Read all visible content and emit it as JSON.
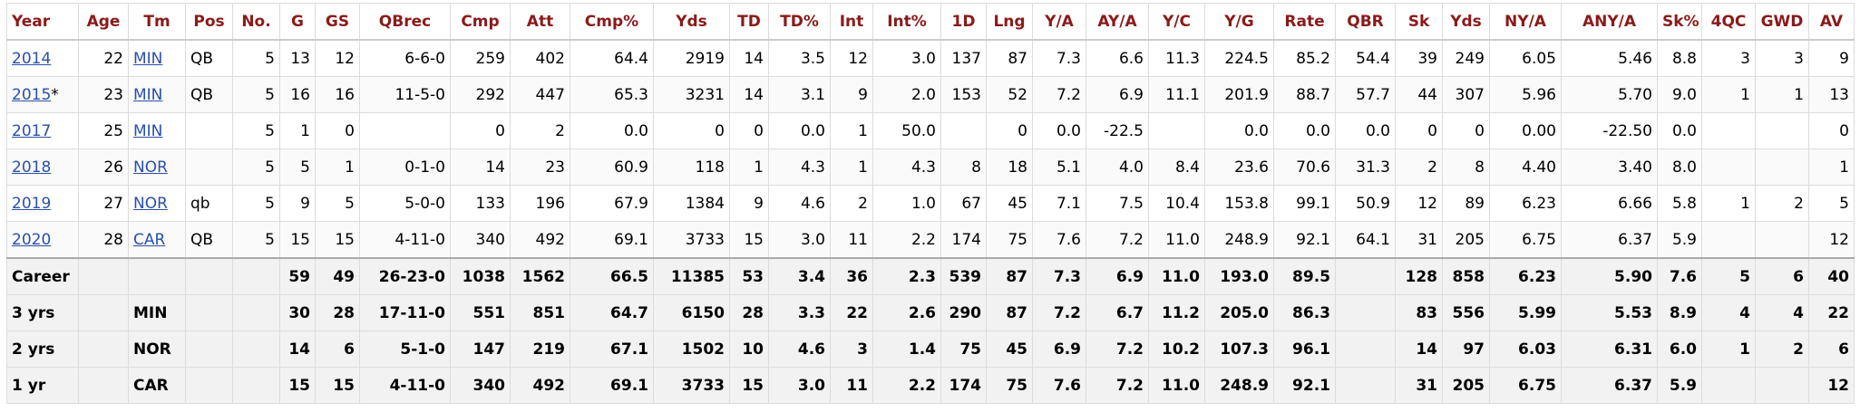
{
  "table": {
    "header": [
      "Year",
      "Age",
      "Tm",
      "Pos",
      "No.",
      "G",
      "GS",
      "QBrec",
      "Cmp",
      "Att",
      "Cmp%",
      "Yds",
      "TD",
      "TD%",
      "Int",
      "Int%",
      "1D",
      "Lng",
      "Y/A",
      "AY/A",
      "Y/C",
      "Y/G",
      "Rate",
      "QBR",
      "Sk",
      "Yds",
      "NY/A",
      "ANY/A",
      "Sk%",
      "4QC",
      "GWD",
      "AV"
    ],
    "rows": [
      {
        "year": "2014",
        "cells": [
          "22",
          "MIN",
          "QB",
          "5",
          "13",
          "12",
          "6-6-0",
          "259",
          "402",
          "64.4",
          "2919",
          "14",
          "3.5",
          "12",
          "3.0",
          "137",
          "87",
          "7.3",
          "6.6",
          "11.3",
          "224.5",
          "85.2",
          "54.4",
          "39",
          "249",
          "6.05",
          "5.46",
          "8.8",
          "3",
          "3",
          "9"
        ]
      },
      {
        "year": "2015",
        "year_note": "*",
        "cells": [
          "23",
          "MIN",
          "QB",
          "5",
          "16",
          "16",
          "11-5-0",
          "292",
          "447",
          "65.3",
          "3231",
          "14",
          "3.1",
          "9",
          "2.0",
          "153",
          "52",
          "7.2",
          "6.9",
          "11.1",
          "201.9",
          "88.7",
          "57.7",
          "44",
          "307",
          "5.96",
          "5.70",
          "9.0",
          "1",
          "1",
          "13"
        ]
      },
      {
        "year": "2017",
        "cells": [
          "25",
          "MIN",
          null,
          "5",
          "1",
          "0",
          null,
          "0",
          "2",
          "0.0",
          "0",
          "0",
          "0.0",
          "1",
          "50.0",
          null,
          "0",
          "0.0",
          "-22.5",
          null,
          "0.0",
          "0.0",
          "0.0",
          "0",
          "0",
          "0.00",
          "-22.50",
          "0.0",
          null,
          null,
          "0"
        ]
      },
      {
        "year": "2018",
        "cells": [
          "26",
          "NOR",
          null,
          "5",
          "5",
          "1",
          "0-1-0",
          "14",
          "23",
          "60.9",
          "118",
          "1",
          "4.3",
          "1",
          "4.3",
          "8",
          "18",
          "5.1",
          "4.0",
          "8.4",
          "23.6",
          "70.6",
          "31.3",
          "2",
          "8",
          "4.40",
          "3.40",
          "8.0",
          null,
          null,
          "1"
        ]
      },
      {
        "year": "2019",
        "cells": [
          "27",
          "NOR",
          "qb",
          "5",
          "9",
          "5",
          "5-0-0",
          "133",
          "196",
          "67.9",
          "1384",
          "9",
          "4.6",
          "2",
          "1.0",
          "67",
          "45",
          "7.1",
          "7.5",
          "10.4",
          "153.8",
          "99.1",
          "50.9",
          "12",
          "89",
          "6.23",
          "6.66",
          "5.8",
          "1",
          "2",
          "5"
        ]
      },
      {
        "year": "2020",
        "cells": [
          "28",
          "CAR",
          "QB",
          "5",
          "15",
          "15",
          "4-11-0",
          "340",
          "492",
          "69.1",
          "3733",
          "15",
          "3.0",
          "11",
          "2.2",
          "174",
          "75",
          "7.6",
          "7.2",
          "11.0",
          "248.9",
          "92.1",
          "64.1",
          "31",
          "205",
          "6.75",
          "6.37",
          "5.9",
          null,
          null,
          "12"
        ]
      }
    ],
    "footer": [
      [
        "Career",
        null,
        null,
        null,
        null,
        "59",
        "49",
        "26-23-0",
        "1038",
        "1562",
        "66.5",
        "11385",
        "53",
        "3.4",
        "36",
        "2.3",
        "539",
        "87",
        "7.3",
        "6.9",
        "11.0",
        "193.0",
        "89.5",
        null,
        "128",
        "858",
        "6.23",
        "5.90",
        "7.6",
        "5",
        "6",
        "40"
      ],
      [
        "3 yrs",
        null,
        "MIN",
        null,
        null,
        "30",
        "28",
        "17-11-0",
        "551",
        "851",
        "64.7",
        "6150",
        "28",
        "3.3",
        "22",
        "2.6",
        "290",
        "87",
        "7.2",
        "6.7",
        "11.2",
        "205.0",
        "86.3",
        null,
        "83",
        "556",
        "5.99",
        "5.53",
        "8.9",
        "4",
        "4",
        "22"
      ],
      [
        "2 yrs",
        null,
        "NOR",
        null,
        null,
        "14",
        "6",
        "5-1-0",
        "147",
        "219",
        "67.1",
        "1502",
        "10",
        "4.6",
        "3",
        "1.4",
        "75",
        "45",
        "6.9",
        "7.2",
        "10.2",
        "107.3",
        "96.1",
        null,
        "14",
        "97",
        "6.03",
        "6.31",
        "6.0",
        "1",
        "2",
        "6"
      ],
      [
        "1 yr",
        null,
        "CAR",
        null,
        null,
        "15",
        "15",
        "4-11-0",
        "340",
        "492",
        "69.1",
        "3733",
        "15",
        "3.0",
        "11",
        "2.2",
        "174",
        "75",
        "7.6",
        "7.2",
        "11.0",
        "248.9",
        "92.1",
        null,
        "31",
        "205",
        "6.75",
        "6.37",
        "5.9",
        null,
        null,
        "12"
      ]
    ]
  }
}
